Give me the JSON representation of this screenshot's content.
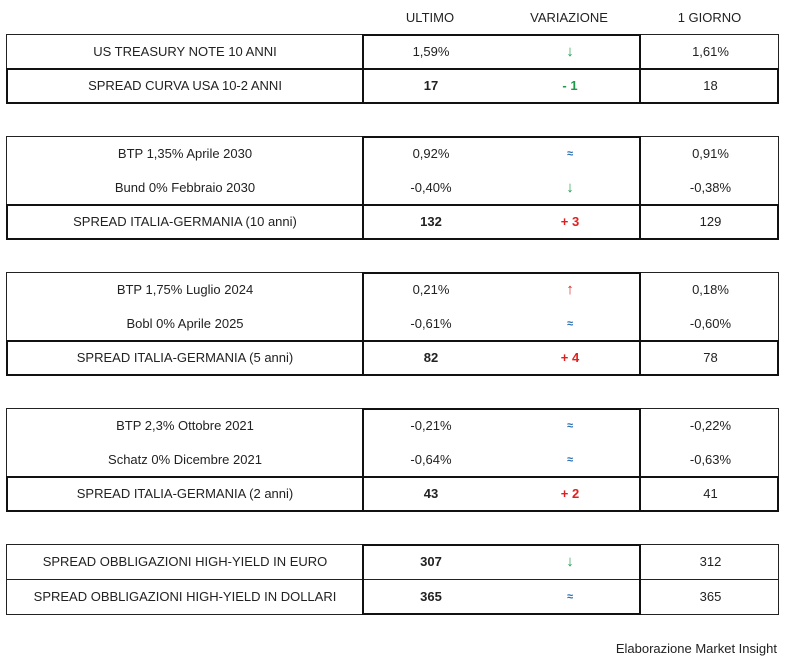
{
  "headers": {
    "ultimo": "ULTIMO",
    "variazione": "VARIAZIONE",
    "giorno": "1 GIORNO"
  },
  "colors": {
    "up": "#e02020",
    "down": "#1f9a4a",
    "flat": "#2a6fb0"
  },
  "icons": {
    "down": "arrow-down-icon",
    "up": "arrow-up-icon",
    "flat": "approx-equal-icon"
  },
  "groups": [
    {
      "rows": [
        {
          "label": "US TREASURY NOTE 10 ANNI",
          "ultimo": "1,59%",
          "var": "↓",
          "trend": "down",
          "giorno": "1,61%"
        },
        {
          "label": "SPREAD CURVA USA 10-2 ANNI",
          "ultimo": "17",
          "var": "- 1",
          "trend": "down",
          "giorno": "18",
          "spread": true
        }
      ]
    },
    {
      "rows": [
        {
          "label": "BTP 1,35% Aprile 2030",
          "ultimo": "0,92%",
          "var": "≈",
          "trend": "flat",
          "giorno": "0,91%"
        },
        {
          "label": "Bund 0% Febbraio 2030",
          "ultimo": "-0,40%",
          "var": "↓",
          "trend": "down",
          "giorno": "-0,38%"
        },
        {
          "label": "SPREAD ITALIA-GERMANIA (10 anni)",
          "ultimo": "132",
          "var": "+ 3",
          "trend": "up",
          "giorno": "129",
          "spread": true
        }
      ]
    },
    {
      "rows": [
        {
          "label": "BTP 1,75% Luglio 2024",
          "ultimo": "0,21%",
          "var": "↑",
          "trend": "up",
          "giorno": "0,18%"
        },
        {
          "label": "Bobl 0% Aprile 2025",
          "ultimo": "-0,61%",
          "var": "≈",
          "trend": "flat",
          "giorno": "-0,60%"
        },
        {
          "label": "SPREAD ITALIA-GERMANIA (5 anni)",
          "ultimo": "82",
          "var": "+ 4",
          "trend": "up",
          "giorno": "78",
          "spread": true
        }
      ]
    },
    {
      "rows": [
        {
          "label": "BTP 2,3% Ottobre 2021",
          "ultimo": "-0,21%",
          "var": "≈",
          "trend": "flat",
          "giorno": "-0,22%"
        },
        {
          "label": "Schatz 0% Dicembre 2021",
          "ultimo": "-0,64%",
          "var": "≈",
          "trend": "flat",
          "giorno": "-0,63%"
        },
        {
          "label": "SPREAD ITALIA-GERMANIA (2 anni)",
          "ultimo": "43",
          "var": "+ 2",
          "trend": "up",
          "giorno": "41",
          "spread": true
        }
      ]
    },
    {
      "rows": [
        {
          "label": "SPREAD OBBLIGAZIONI HIGH-YIELD IN EURO",
          "ultimo": "307",
          "var": "↓",
          "trend": "down",
          "giorno": "312",
          "boldValue": true,
          "lined": true
        },
        {
          "label": "SPREAD OBBLIGAZIONI HIGH-YIELD IN DOLLARI",
          "ultimo": "365",
          "var": "≈",
          "trend": "flat",
          "giorno": "365",
          "boldValue": true,
          "lined": true
        }
      ]
    }
  ],
  "footer": "Elaborazione Market Insight"
}
